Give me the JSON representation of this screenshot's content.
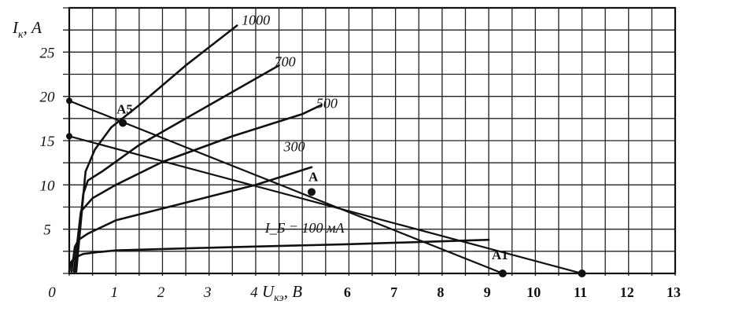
{
  "chart_data": {
    "type": "line",
    "title": "",
    "xlabel": "U",
    "xlabel_sub": "кэ",
    "xlabel_unit": ", В",
    "ylabel": "I",
    "ylabel_sub": "к",
    "ylabel_unit": ", А",
    "xlim": [
      0,
      13
    ],
    "ylim": [
      0,
      30
    ],
    "grid": true,
    "x_ticks": [
      "0",
      "1",
      "2",
      "3",
      "4",
      "6",
      "7",
      "8",
      "9",
      "10",
      "11",
      "12",
      "13"
    ],
    "x_tick_values": [
      0,
      1,
      2,
      3,
      4,
      6,
      7,
      8,
      9,
      10,
      11,
      12,
      13
    ],
    "y_ticks": [
      "5",
      "10",
      "15",
      "20",
      "25"
    ],
    "y_tick_values": [
      5,
      10,
      15,
      20,
      25
    ],
    "series": [
      {
        "name": "100",
        "label_text": "I_Б = 100 мА",
        "points": [
          [
            0.0,
            0.2
          ],
          [
            0.04,
            1.3
          ],
          [
            0.12,
            1.8
          ],
          [
            0.3,
            2.2
          ],
          [
            0.6,
            2.4
          ],
          [
            1.0,
            2.6
          ],
          [
            3.0,
            2.9
          ],
          [
            6.0,
            3.3
          ],
          [
            9.0,
            3.8
          ]
        ]
      },
      {
        "name": "300",
        "label_text": "300",
        "points": [
          [
            0.05,
            0.2
          ],
          [
            0.12,
            3.0
          ],
          [
            0.2,
            3.8
          ],
          [
            0.4,
            4.5
          ],
          [
            1.0,
            6.0
          ],
          [
            2.5,
            8.0
          ],
          [
            4.0,
            10.0
          ],
          [
            5.2,
            12.0
          ]
        ]
      },
      {
        "name": "500",
        "label_text": "500",
        "points": [
          [
            0.1,
            0.2
          ],
          [
            0.25,
            7.0
          ],
          [
            0.5,
            8.5
          ],
          [
            1.0,
            10.0
          ],
          [
            2.0,
            12.6
          ],
          [
            3.5,
            15.5
          ],
          [
            5.0,
            18.0
          ],
          [
            5.4,
            19.0
          ]
        ]
      },
      {
        "name": "700",
        "label_text": "700",
        "points": [
          [
            0.12,
            0.2
          ],
          [
            0.3,
            9.0
          ],
          [
            0.4,
            10.5
          ],
          [
            0.7,
            11.5
          ],
          [
            1.5,
            14.5
          ],
          [
            3.0,
            19.0
          ],
          [
            4.5,
            23.5
          ]
        ]
      },
      {
        "name": "1000",
        "label_text": "1000",
        "points": [
          [
            0.15,
            0.2
          ],
          [
            0.35,
            11.5
          ],
          [
            0.55,
            14.0
          ],
          [
            0.9,
            16.5
          ],
          [
            1.5,
            19.0
          ],
          [
            2.5,
            23.5
          ],
          [
            3.6,
            28.0
          ]
        ]
      }
    ],
    "load_lines": [
      {
        "points": [
          [
            0.0,
            19.5
          ],
          [
            9.3,
            0.0
          ]
        ]
      },
      {
        "points": [
          [
            0.0,
            15.5
          ],
          [
            11.0,
            0.0
          ]
        ]
      }
    ],
    "points": [
      {
        "label": "A5",
        "x": 1.15,
        "y": 17.0
      },
      {
        "label": "A",
        "x": 5.2,
        "y": 9.2
      },
      {
        "label": "A1",
        "x": 9.3,
        "y": 0.0
      },
      {
        "label": "",
        "x": 11.0,
        "y": 0.0
      }
    ]
  }
}
